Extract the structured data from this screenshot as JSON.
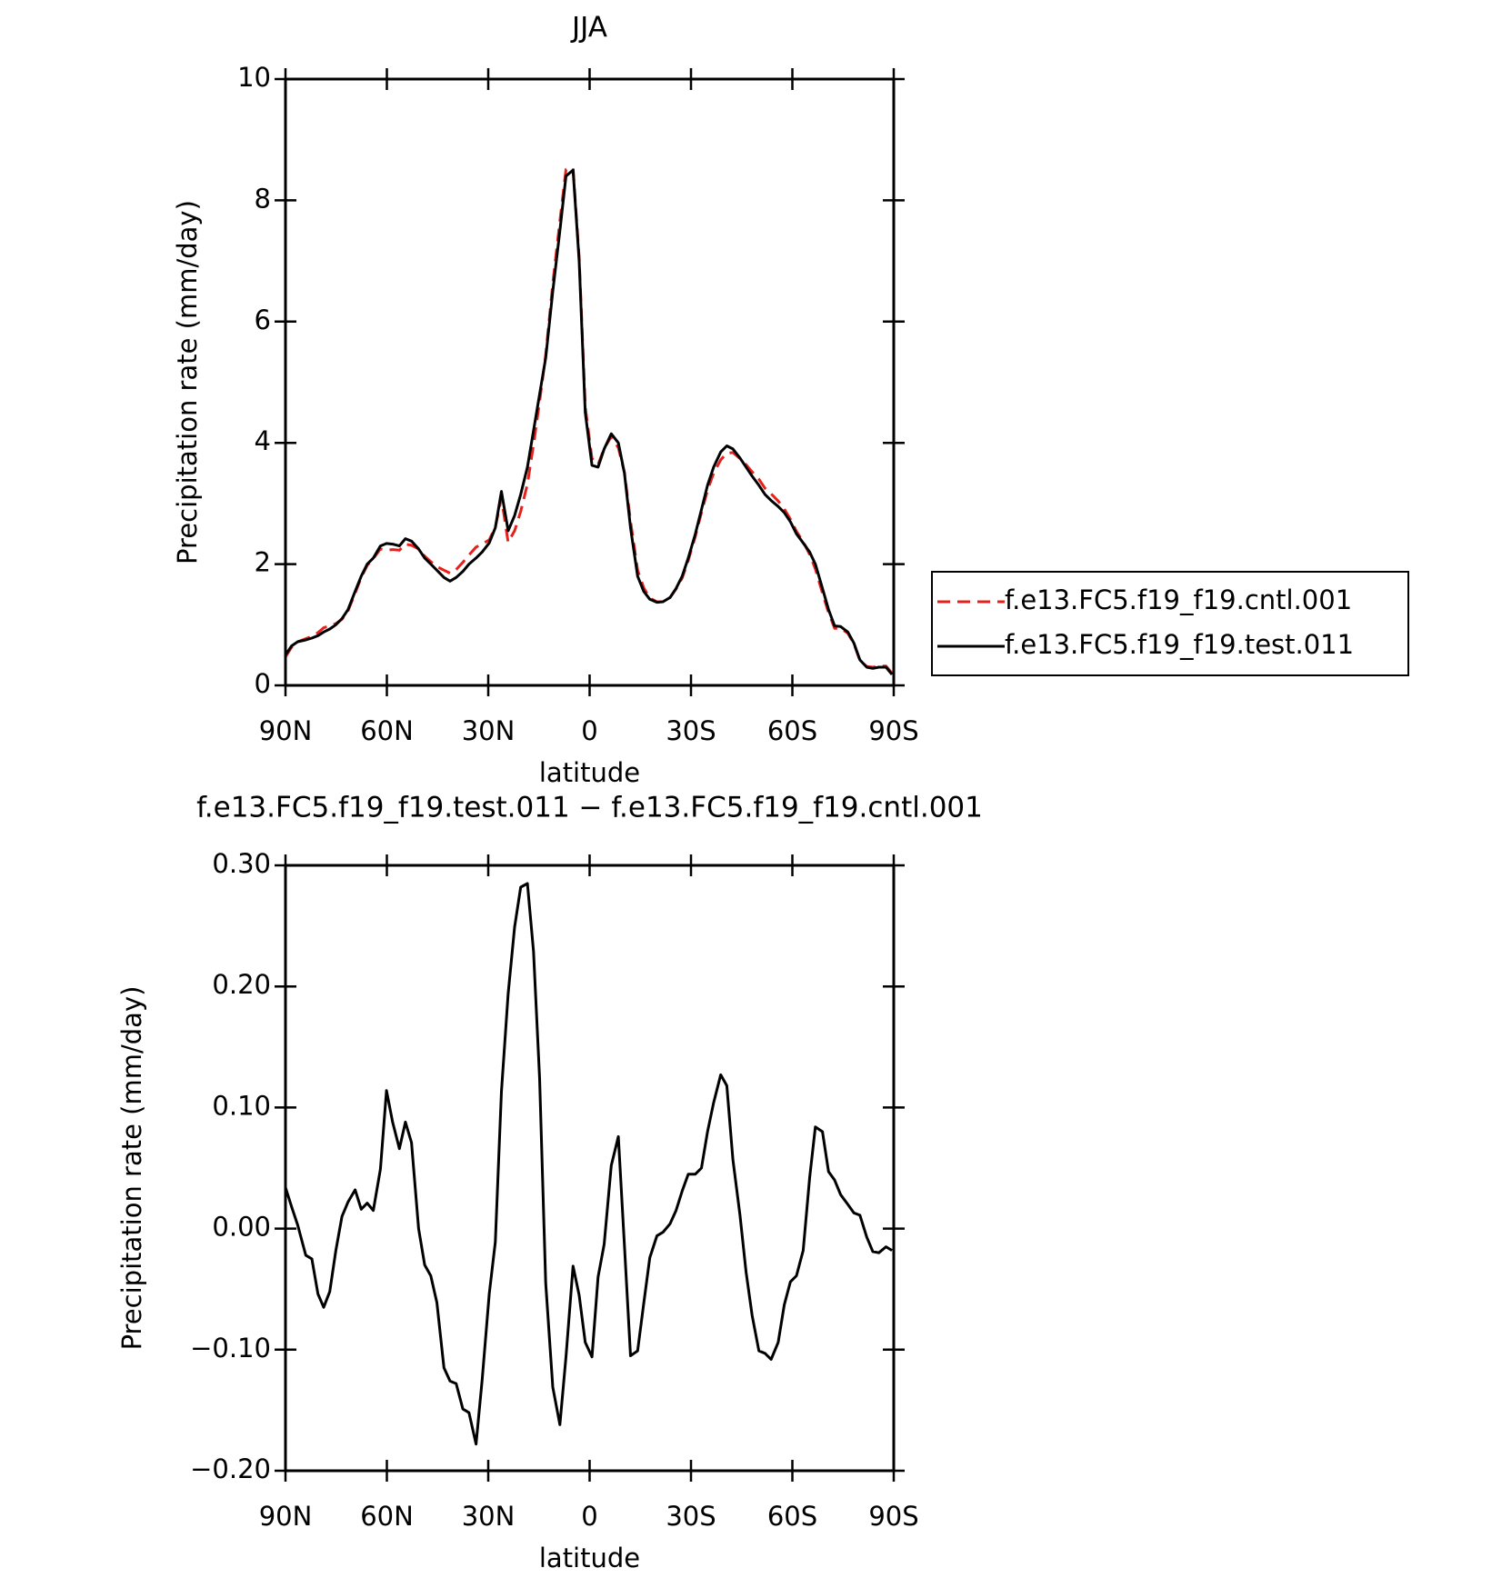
{
  "chart_data": [
    {
      "type": "line",
      "title": "JJA",
      "xlabel": "latitude",
      "ylabel": "Precipitation rate (mm/day)",
      "x": [
        90,
        88.2,
        86.4,
        84.0,
        82.2,
        80.4,
        78.7,
        76.9,
        75.1,
        73.3,
        71.5,
        69.4,
        67.6,
        65.8,
        64.0,
        61.9,
        60.1,
        58.3,
        56.3,
        54.5,
        52.7,
        50.6,
        48.8,
        47.0,
        45.2,
        43.1,
        41.3,
        39.5,
        37.5,
        35.7,
        33.6,
        31.8,
        29.7,
        27.9,
        26.1,
        24.1,
        22.2,
        20.4,
        18.4,
        16.6,
        14.8,
        13.0,
        10.9,
        8.8,
        7.0,
        4.9,
        3.1,
        1.3,
        -0.7,
        -2.5,
        -4.3,
        -6.4,
        -8.5,
        -10.3,
        -12.1,
        -14.2,
        -16.0,
        -17.8,
        -19.9,
        -21.7,
        -23.8,
        -25.6,
        -27.4,
        -29.2,
        -31.3,
        -33.1,
        -34.9,
        -36.7,
        -38.8,
        -40.6,
        -42.4,
        -44.5,
        -46.3,
        -48.1,
        -50.1,
        -51.9,
        -53.7,
        -55.8,
        -57.6,
        -59.4,
        -61.2,
        -63.2,
        -65.1,
        -66.8,
        -68.9,
        -70.7,
        -72.5,
        -74.3,
        -76.4,
        -78.2,
        -80.0,
        -82.0,
        -83.8,
        -85.6,
        -87.7,
        -89.5
      ],
      "series": [
        {
          "name": "f.e13.FC5.f19_f19.cntl.001",
          "color": "#e8201c",
          "linestyle": "dashed",
          "values": [
            0.47,
            0.63,
            0.72,
            0.77,
            0.81,
            0.87,
            0.95,
            0.98,
            1.02,
            1.09,
            1.23,
            1.52,
            1.78,
            1.98,
            2.09,
            2.25,
            2.23,
            2.24,
            2.23,
            2.33,
            2.31,
            2.25,
            2.13,
            2.04,
            1.96,
            1.9,
            1.85,
            1.91,
            2.03,
            2.15,
            2.28,
            2.33,
            2.4,
            2.61,
            3.09,
            2.36,
            2.55,
            2.87,
            3.32,
            3.97,
            4.68,
            5.45,
            6.63,
            7.66,
            8.51,
            8.53,
            7.06,
            4.59,
            3.74,
            3.64,
            3.91,
            4.1,
            3.92,
            3.51,
            2.71,
            1.9,
            1.61,
            1.44,
            1.38,
            1.38,
            1.45,
            1.59,
            1.77,
            2.06,
            2.46,
            2.85,
            3.22,
            3.5,
            3.72,
            3.83,
            3.84,
            3.74,
            3.64,
            3.52,
            3.4,
            3.25,
            3.16,
            3.04,
            2.91,
            2.74,
            2.54,
            2.37,
            2.16,
            1.92,
            1.52,
            1.2,
            0.94,
            0.94,
            0.86,
            0.69,
            0.41,
            0.31,
            0.3,
            0.32,
            0.32,
            0.2
          ]
        },
        {
          "name": "f.e13.FC5.f19_f19.test.011",
          "color": "#000000",
          "linestyle": "solid",
          "values": [
            0.5,
            0.65,
            0.72,
            0.75,
            0.78,
            0.82,
            0.88,
            0.93,
            1.0,
            1.1,
            1.25,
            1.55,
            1.8,
            2.0,
            2.1,
            2.3,
            2.34,
            2.33,
            2.3,
            2.42,
            2.38,
            2.25,
            2.1,
            2.0,
            1.9,
            1.78,
            1.72,
            1.78,
            1.88,
            2.0,
            2.1,
            2.2,
            2.35,
            2.6,
            3.2,
            2.55,
            2.8,
            3.15,
            3.6,
            4.2,
            4.8,
            5.4,
            6.5,
            7.5,
            8.4,
            8.5,
            7.0,
            4.5,
            3.63,
            3.6,
            3.9,
            4.15,
            4.0,
            3.5,
            2.6,
            1.8,
            1.55,
            1.42,
            1.37,
            1.38,
            1.45,
            1.6,
            1.8,
            2.1,
            2.5,
            2.9,
            3.3,
            3.6,
            3.85,
            3.95,
            3.9,
            3.75,
            3.6,
            3.45,
            3.3,
            3.15,
            3.05,
            2.95,
            2.85,
            2.7,
            2.5,
            2.35,
            2.2,
            2.0,
            1.6,
            1.25,
            0.98,
            0.97,
            0.88,
            0.7,
            0.42,
            0.3,
            0.28,
            0.3,
            0.3,
            0.18
          ]
        }
      ],
      "xlim": [
        90,
        -90
      ],
      "xticks": [
        {
          "value": 90,
          "label": "90N"
        },
        {
          "value": 60,
          "label": "60N"
        },
        {
          "value": 30,
          "label": "30N"
        },
        0,
        {
          "value": -30,
          "label": "30S"
        },
        {
          "value": -60,
          "label": "60S"
        },
        {
          "value": -90,
          "label": "90S"
        }
      ],
      "ylim": [
        0,
        10
      ],
      "yticks": [
        0,
        2,
        4,
        6,
        8,
        10
      ],
      "legend": "outside-right",
      "grid": false
    },
    {
      "type": "line",
      "title": "f.e13.FC5.f19_f19.test.011 − f.e13.FC5.f19_f19.cntl.001",
      "xlabel": "latitude",
      "ylabel": "Precipitation rate (mm/day)",
      "x": [
        90,
        88.2,
        86.4,
        84.0,
        82.2,
        80.4,
        78.7,
        76.9,
        75.1,
        73.3,
        71.5,
        69.4,
        67.6,
        65.8,
        64.0,
        61.9,
        60.1,
        58.3,
        56.3,
        54.5,
        52.7,
        50.6,
        48.8,
        47.0,
        45.2,
        43.1,
        41.3,
        39.5,
        37.5,
        35.7,
        33.6,
        31.8,
        29.7,
        27.9,
        26.1,
        24.1,
        22.2,
        20.4,
        18.4,
        16.6,
        14.8,
        13.0,
        10.9,
        8.8,
        7.0,
        4.9,
        3.1,
        1.3,
        -0.7,
        -2.5,
        -4.3,
        -6.4,
        -8.5,
        -10.3,
        -12.1,
        -14.2,
        -16.0,
        -17.8,
        -19.9,
        -21.7,
        -23.8,
        -25.6,
        -27.4,
        -29.2,
        -31.3,
        -33.1,
        -34.9,
        -36.7,
        -38.8,
        -40.6,
        -42.4,
        -44.5,
        -46.3,
        -48.1,
        -50.1,
        -51.9,
        -53.7,
        -55.8,
        -57.6,
        -59.4,
        -61.2,
        -63.2,
        -65.1,
        -66.8,
        -68.9,
        -70.7,
        -72.5,
        -74.3,
        -76.4,
        -78.2,
        -80.0,
        -82.0,
        -83.8,
        -85.6,
        -87.7,
        -89.5
      ],
      "series": [
        {
          "color": "#000000",
          "linestyle": "solid",
          "values": [
            0.034,
            0.018,
            0.003,
            -0.022,
            -0.025,
            -0.054,
            -0.065,
            -0.052,
            -0.018,
            0.01,
            0.022,
            0.032,
            0.016,
            0.021,
            0.015,
            0.049,
            0.114,
            0.088,
            0.066,
            0.088,
            0.071,
            0.0,
            -0.03,
            -0.039,
            -0.061,
            -0.115,
            -0.126,
            -0.128,
            -0.149,
            -0.152,
            -0.178,
            -0.125,
            -0.054,
            -0.011,
            0.113,
            0.194,
            0.249,
            0.282,
            0.285,
            0.229,
            0.124,
            -0.045,
            -0.131,
            -0.162,
            -0.106,
            -0.031,
            -0.055,
            -0.094,
            -0.106,
            -0.04,
            -0.013,
            0.052,
            0.076,
            -0.014,
            -0.105,
            -0.101,
            -0.062,
            -0.024,
            -0.006,
            -0.003,
            0.004,
            0.015,
            0.031,
            0.045,
            0.045,
            0.05,
            0.08,
            0.104,
            0.127,
            0.118,
            0.057,
            0.011,
            -0.036,
            -0.072,
            -0.101,
            -0.103,
            -0.108,
            -0.094,
            -0.063,
            -0.044,
            -0.039,
            -0.018,
            0.042,
            0.084,
            0.08,
            0.047,
            0.04,
            0.028,
            0.02,
            0.013,
            0.011,
            -0.007,
            -0.019,
            -0.02,
            -0.015,
            -0.018
          ]
        }
      ],
      "xlim": [
        90,
        -90
      ],
      "xticks": [
        {
          "value": 90,
          "label": "90N"
        },
        {
          "value": 60,
          "label": "60N"
        },
        {
          "value": 30,
          "label": "30N"
        },
        0,
        {
          "value": -30,
          "label": "30S"
        },
        {
          "value": -60,
          "label": "60S"
        },
        {
          "value": -90,
          "label": "90S"
        }
      ],
      "ylim": [
        -0.2,
        0.3
      ],
      "yticks": [
        {
          "value": -0.2,
          "label": "−0.20"
        },
        {
          "value": -0.1,
          "label": "−0.10"
        },
        {
          "value": 0,
          "label": "0.00"
        },
        {
          "value": 0.1,
          "label": "0.10"
        },
        {
          "value": 0.2,
          "label": "0.20"
        },
        {
          "value": 0.3,
          "label": "0.30"
        }
      ],
      "grid": false
    }
  ]
}
